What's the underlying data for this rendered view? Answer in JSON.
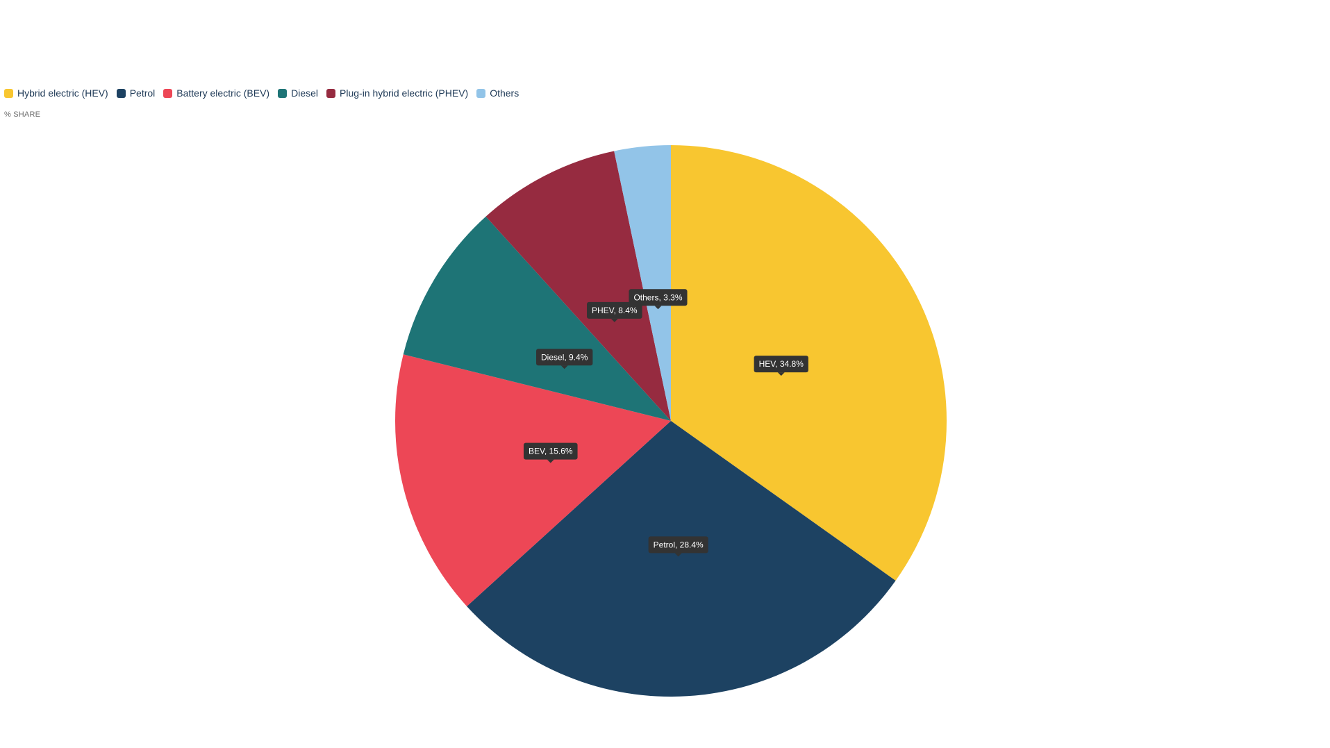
{
  "chart_data": {
    "type": "pie",
    "unit_label": "% SHARE",
    "legend_placement": "top-left",
    "slices": [
      {
        "name": "Hybrid electric (HEV)",
        "label": "HEV, 34.8%",
        "value": 34.8,
        "color": "#f8c630"
      },
      {
        "name": "Petrol",
        "label": "Petrol, 28.4%",
        "value": 28.4,
        "color": "#1d4262"
      },
      {
        "name": "Battery electric (BEV)",
        "label": "BEV, 15.6%",
        "value": 15.6,
        "color": "#ed4756"
      },
      {
        "name": "Diesel",
        "label": "Diesel, 9.4%",
        "value": 9.4,
        "color": "#1e7476"
      },
      {
        "name": "Plug-in hybrid electric (PHEV)",
        "label": "PHEV, 8.4%",
        "value": 8.4,
        "color": "#962b40"
      },
      {
        "name": "Others",
        "label": "Others, 3.3%",
        "value": 3.3,
        "color": "#92c4e8"
      }
    ]
  }
}
